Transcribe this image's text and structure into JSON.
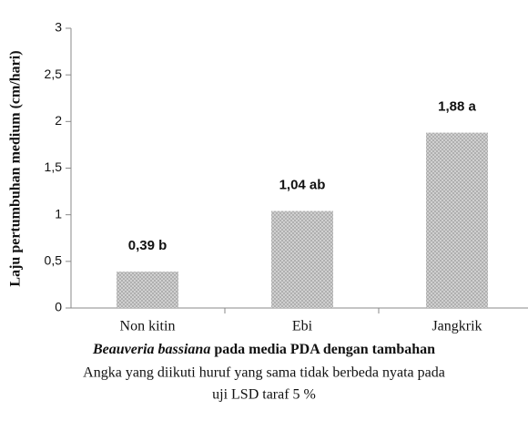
{
  "chart_data": {
    "type": "bar",
    "ylabel": "Laju pertumbuhan medium (cm/hari)",
    "xlabel_species": "Beauveria bassiana",
    "xlabel": "pada media PDA dengan tambahan",
    "note": [
      "Angka yang diikuti huruf yang sama tidak berbeda nyata pada",
      "uji LSD taraf 5 %"
    ],
    "categories": [
      "Non kitin",
      "Ebi",
      "Jangkrik"
    ],
    "values": [
      0.39,
      1.04,
      1.88
    ],
    "value_labels": [
      "0,39 b",
      "1,04 ab",
      "1,88 a"
    ],
    "color": "#a9a9a9",
    "ylim": [
      0,
      3
    ],
    "yticks": [
      0,
      {
        "value": 0.5,
        "label": "0,5"
      },
      1,
      {
        "value": 1.5,
        "label": "1,5"
      },
      2,
      {
        "value": 2.5,
        "label": "2,5"
      },
      3
    ],
    "grid": false
  }
}
